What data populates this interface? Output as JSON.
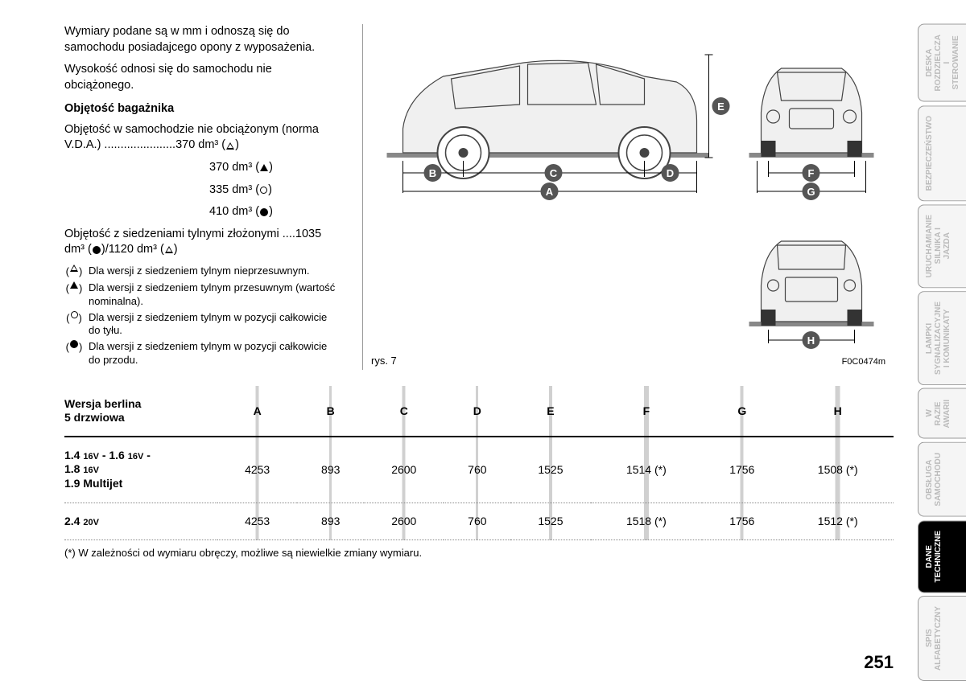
{
  "intro": {
    "p1": "Wymiary podane są w mm i odnoszą się do samochodu posiadajcego opony z wyposażenia.",
    "p2": "Wysokość odnosi się do samochodu nie obciążonego."
  },
  "cargo": {
    "heading": "Objętość bagażnika",
    "line1_prefix": "Objętość w samochodzie nie obciążonym (norma V.D.A.) ......................",
    "v1": "370 dm³",
    "v2": "370 dm³",
    "v3": "335 dm³",
    "v4": "410 dm³",
    "folded_prefix": "Objętość z siedzeniami tylnymi złożonymi ....",
    "folded_a": "1035 dm³",
    "folded_b": "1120 dm³"
  },
  "notes": {
    "n1": "Dla wersji z siedzeniem tylnym nieprzesuwnym.",
    "n2": "Dla wersji z siedzeniem tylnym przesuwnym (wartość nominalna).",
    "n3": "Dla wersji z siedzeniem tylnym w pozycji całkowicie do tyłu.",
    "n4": "Dla wersji z siedzeniem tylnym w pozycji całkowicie do przodu."
  },
  "figure": {
    "caption_left": "rys. 7",
    "caption_right": "F0C0474m",
    "labels": {
      "A": "A",
      "B": "B",
      "C": "C",
      "D": "D",
      "E": "E",
      "F": "F",
      "G": "G",
      "H": "H"
    }
  },
  "table": {
    "header_title": "Wersja berlina\n5 drzwiowa",
    "cols": [
      "A",
      "B",
      "C",
      "D",
      "E",
      "F",
      "G",
      "H"
    ],
    "rows": [
      {
        "label_html": "1.4 <span class='small'>16V</span> - 1.6 <span class='small'>16V</span> -<br>1.8 <span class='small'>16V</span><br>1.9 Multijet",
        "vals": [
          "4253",
          "893",
          "2600",
          "760",
          "1525",
          "1514 (*)",
          "1756",
          "1508 (*)"
        ]
      },
      {
        "label_html": "2.4 <span class='small'>20V</span>",
        "vals": [
          "4253",
          "893",
          "2600",
          "760",
          "1525",
          "1518 (*)",
          "1756",
          "1512 (*)"
        ]
      }
    ],
    "footnote": "(*) W zależności od wymiaru obręczy, możliwe są niewielkie zmiany wymiaru."
  },
  "tabs": [
    {
      "label": "DESKA\nROZDZIELCZA\nI STEROWANIE",
      "active": false
    },
    {
      "label": "BEZPIECZEŃSTWO",
      "active": false
    },
    {
      "label": "URUCHAMIANIE\nSILNIKA I JAZDA",
      "active": false
    },
    {
      "label": "LAMPKI\nSYGNALIZACYJNE\nI KOMUNIKATY",
      "active": false
    },
    {
      "label": "W RAZIE AWARII",
      "active": false
    },
    {
      "label": "OBSŁUGA\nSAMOCHODU",
      "active": false
    },
    {
      "label": "DANE TECHNICZNE",
      "active": true
    },
    {
      "label": "SPIS\nALFABETYCZNY",
      "active": false
    }
  ],
  "page_number": "251"
}
